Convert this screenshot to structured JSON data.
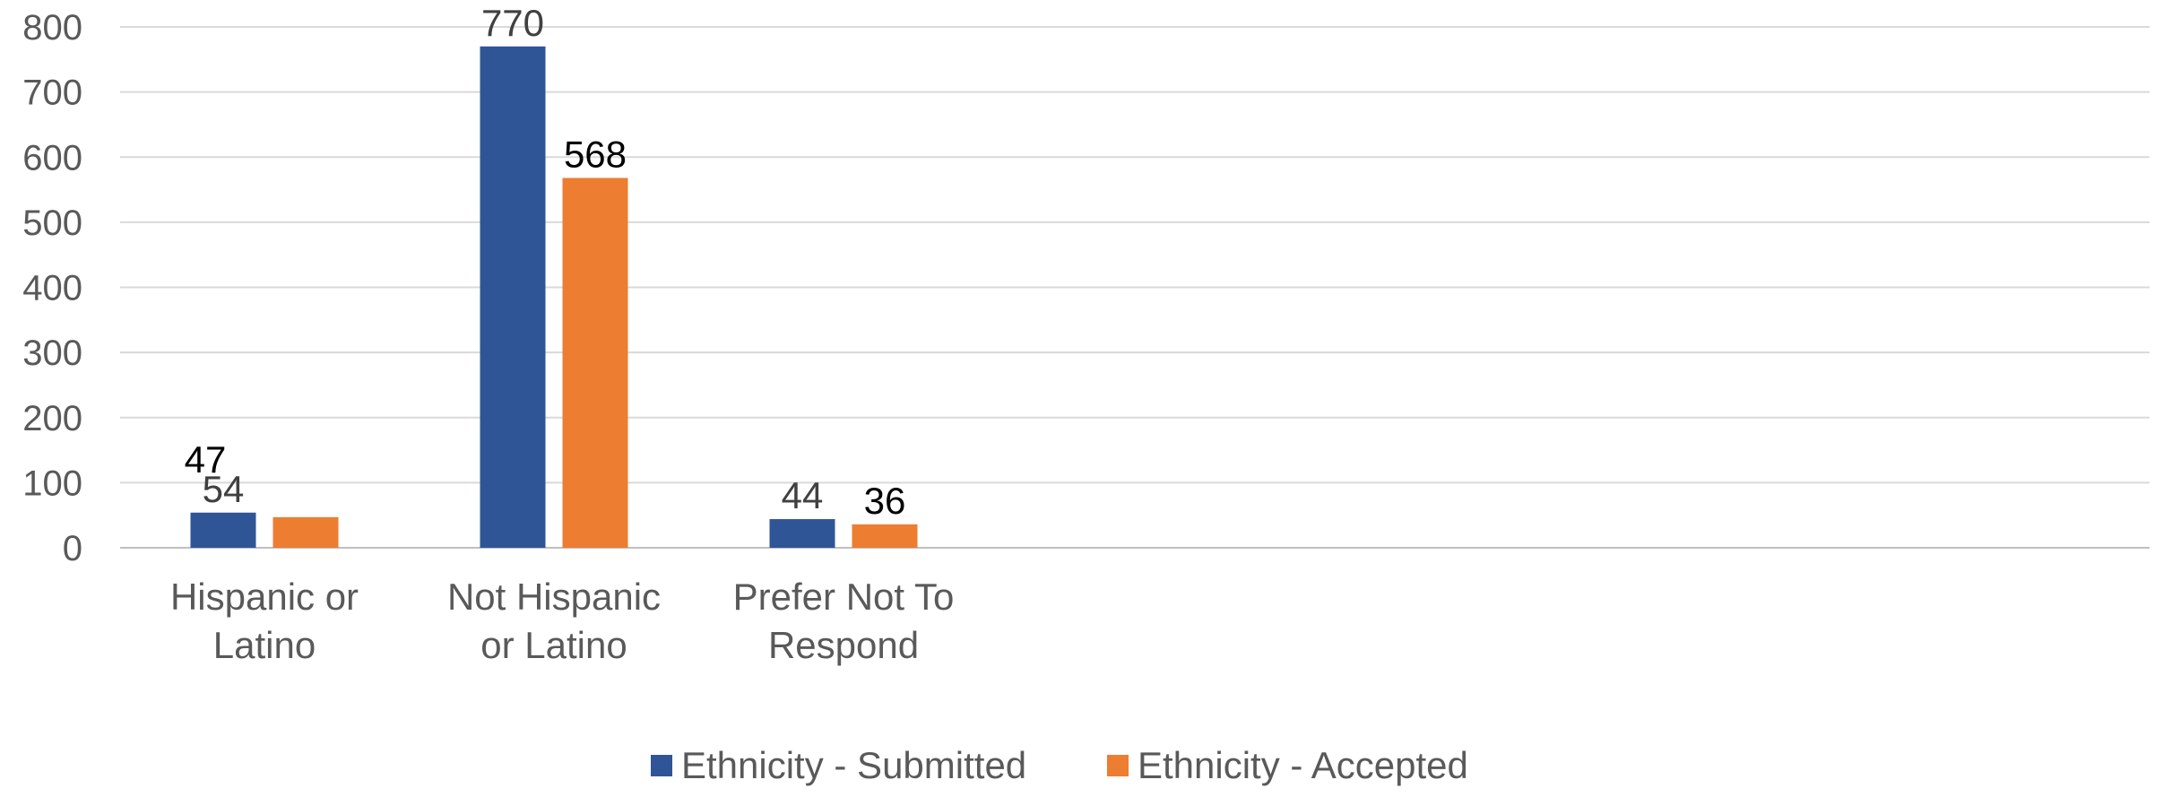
{
  "chart_data": {
    "type": "bar",
    "title": "",
    "xlabel": "",
    "ylabel": "",
    "ylim": [
      0,
      800
    ],
    "yticks": [
      0,
      100,
      200,
      300,
      400,
      500,
      600,
      700,
      800
    ],
    "categories": [
      [
        "Hispanic or",
        "Latino"
      ],
      [
        "Not Hispanic",
        "or Latino"
      ],
      [
        "Prefer Not To",
        "Respond"
      ]
    ],
    "series": [
      {
        "name": "Ethnicity - Submitted",
        "color": "#2f5597",
        "values": [
          54,
          770,
          44
        ]
      },
      {
        "name": "Ethnicity - Accepted",
        "color": "#ed7d31",
        "values": [
          47,
          568,
          36
        ]
      }
    ],
    "data_labels": [
      [
        "54",
        "770",
        "44"
      ],
      [
        "47",
        "568",
        "36"
      ]
    ],
    "grid": true,
    "legend": "bottom"
  }
}
